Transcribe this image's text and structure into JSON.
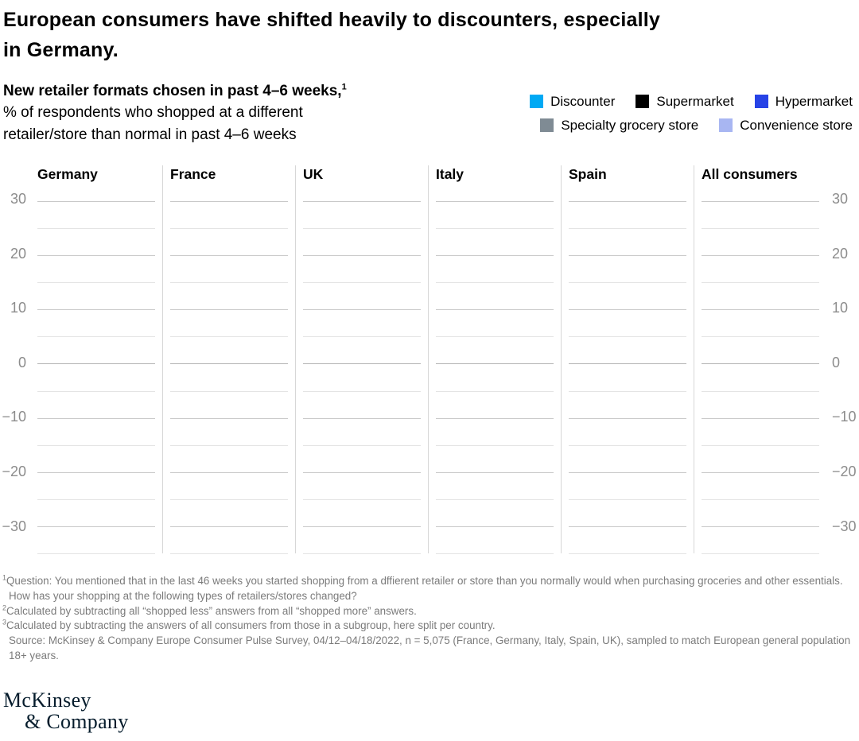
{
  "title": {
    "lines": [
      "European consumers have shifted heavily to discounters, especially",
      "in Germany."
    ]
  },
  "header": {
    "subtitle_text": "New retailer formats chosen in past 4–6 weeks,",
    "subtitle_sup": "1",
    "description_lines": [
      "% of respondents who shopped at a different",
      "retailer/store than normal in past 4–6 weeks"
    ]
  },
  "legend": {
    "rows": [
      [
        {
          "label": "Discounter",
          "color": "#00a9f4"
        },
        {
          "label": "Supermarket",
          "color": "#000000"
        },
        {
          "label": "Hypermarket",
          "color": "#2743e6"
        }
      ],
      [
        {
          "label": "Specialty grocery store",
          "color": "#7f8b94"
        },
        {
          "label": "Convenience store",
          "color": "#a8b6f2"
        }
      ]
    ]
  },
  "chart_data": {
    "type": "bar",
    "title": "New retailer formats chosen in past 4–6 weeks",
    "ylabel": "% of respondents",
    "panels": [
      "Germany",
      "France",
      "UK",
      "Italy",
      "Spain",
      "All consumers"
    ],
    "series": [
      {
        "name": "Discounter",
        "color": "#00a9f4",
        "values": []
      },
      {
        "name": "Supermarket",
        "color": "#000000",
        "values": []
      },
      {
        "name": "Hypermarket",
        "color": "#2743e6",
        "values": []
      },
      {
        "name": "Specialty grocery store",
        "color": "#7f8b94",
        "values": []
      },
      {
        "name": "Convenience store",
        "color": "#a8b6f2",
        "values": []
      }
    ],
    "bars_rendered": false,
    "ymax": 30,
    "ymin": -35,
    "tick_step": 5,
    "yticks": [
      30,
      20,
      10,
      0,
      -10,
      -20,
      -30
    ],
    "ytick_labels": [
      "30",
      "20",
      "10",
      "0",
      "−10",
      "−20",
      "−30"
    ],
    "grid": true,
    "legend_position": "top-right"
  },
  "footnotes": {
    "items": [
      {
        "sup": "1",
        "text": "Question: You mentioned that in the last 46 weeks you started shopping from a dffierent retailer or store than you normally would when purchasing groceries and other essentials. How has your shopping at the following types of retailers/stores changed?"
      },
      {
        "sup": "2",
        "text": "Calculated by subtracting all “shopped less” answers from all “shopped more” answers."
      },
      {
        "sup": "3",
        "text": "Calculated by subtracting the answers of all consumers from those in a subgroup, here split per country."
      }
    ],
    "source": "Source: McKinsey & Company Europe Consumer Pulse Survey, 04/12–04/18/2022, n = 5,075 (France, Germany, Italy, Spain, UK), sampled to match European general population 18+ years."
  },
  "logo": {
    "line1": "McKinsey",
    "line2": "& Company",
    "color": "#051c2c"
  }
}
